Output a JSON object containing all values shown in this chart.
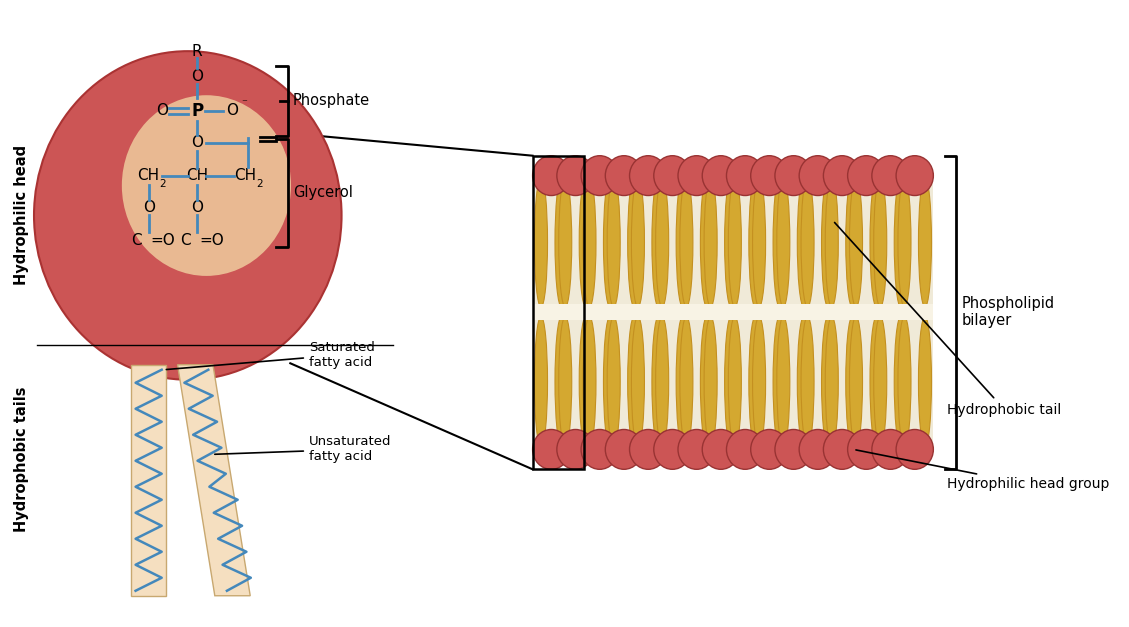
{
  "bg_color": "#ffffff",
  "head_sphere_color": "#cc5555",
  "head_inner_color": "#f5d8a0",
  "tail_rect_color": "#f5dfc0",
  "tail_rect_edge": "#c8a870",
  "bond_color": "#4488bb",
  "bilayer_head_color": "#cc5555",
  "bilayer_head_edge": "#993333",
  "bilayer_tail_color": "#d4a830",
  "bilayer_tail_light": "#f0e8c0",
  "text_color": "#000000",
  "phosphate_label": "Phosphate",
  "glycerol_label": "Glycerol",
  "hydrophilic_head_label": "Hydrophilic head",
  "hydrophobic_tails_label": "Hydrophobic tails",
  "saturated_label": "Saturated\nfatty acid",
  "unsaturated_label": "Unsaturated\nfatty acid",
  "phospholipid_bilayer_label": "Phospholipid\nbilayer",
  "hydrophobic_tail_label": "Hydrophobic tail",
  "hydrophilic_head_group_label": "Hydrophilic head group"
}
